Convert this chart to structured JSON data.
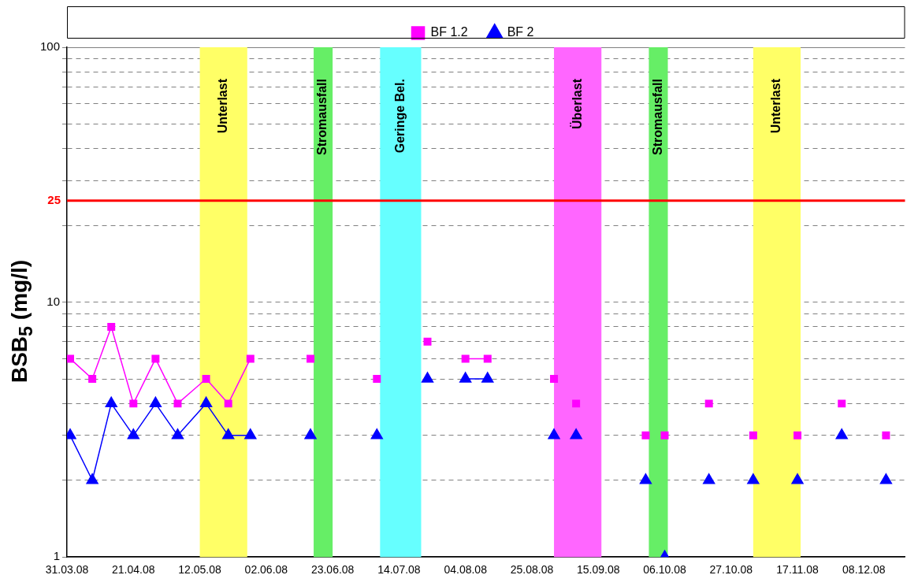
{
  "chart_data": {
    "type": "line",
    "ylabel": "BSB$_{5}$ (mg/l)",
    "x": [
      "2008-04-01",
      "2008-04-08",
      "2008-04-14",
      "2008-04-21",
      "2008-04-28",
      "2008-05-05",
      "2008-05-14",
      "2008-05-21",
      "2008-05-28",
      "2008-06-04",
      "2008-06-16",
      "2008-06-23",
      "2008-07-07",
      "2008-07-14",
      "2008-07-23",
      "2008-07-30",
      "2008-08-04",
      "2008-08-11",
      "2008-08-18",
      "2008-09-01",
      "2008-09-04",
      "2008-09-08",
      "2008-09-15",
      "2008-09-30",
      "2008-10-03",
      "2008-10-06",
      "2008-10-13",
      "2008-10-20",
      "2008-10-27",
      "2008-11-03",
      "2008-11-10",
      "2008-11-17",
      "2008-11-24",
      "2008-12-01",
      "2008-12-08",
      "2008-12-15"
    ],
    "series": [
      {
        "name": "BF 1.2",
        "color": "#ff00ff",
        "marker": "square",
        "values": [
          6,
          5,
          8,
          4,
          6,
          4,
          5,
          4,
          6,
          null,
          6,
          null,
          5,
          null,
          7,
          null,
          6,
          6,
          null,
          5,
          null,
          4,
          null,
          3,
          null,
          3,
          null,
          4,
          null,
          3,
          null,
          3,
          null,
          4,
          null,
          3
        ]
      },
      {
        "name": "BF 2",
        "color": "#0000ff",
        "marker": "triangle",
        "values": [
          3,
          2,
          4,
          3,
          4,
          3,
          4,
          3,
          3,
          null,
          3,
          null,
          3,
          null,
          5,
          null,
          5,
          5,
          null,
          3,
          null,
          3,
          null,
          2,
          null,
          1,
          null,
          2,
          null,
          2,
          null,
          2,
          null,
          3,
          null,
          2
        ]
      }
    ],
    "log": "y",
    "ylim": [
      1,
      100
    ],
    "yticks": [
      1,
      {
        "value": 2,
        "label": null
      },
      {
        "value": 3,
        "label": null
      },
      {
        "value": 4,
        "label": null
      },
      {
        "value": 5,
        "label": null
      },
      {
        "value": 6,
        "label": null
      },
      {
        "value": 7,
        "label": null
      },
      {
        "value": 8,
        "label": null
      },
      {
        "value": 9,
        "label": null
      },
      10,
      {
        "value": 20,
        "label": null
      },
      {
        "value": 30,
        "label": null
      },
      {
        "value": 40,
        "label": null
      },
      {
        "value": 50,
        "label": null
      },
      {
        "value": 60,
        "label": null
      },
      {
        "value": 70,
        "label": null
      },
      {
        "value": 80,
        "label": null
      },
      {
        "value": 90,
        "label": null
      },
      100
    ],
    "xlim": [
      "2008-03-31",
      "2008-12-21"
    ],
    "xticks": [
      {
        "value": "2008-03-31",
        "label": "31.03.08"
      },
      {
        "value": "2008-04-21",
        "label": "21.04.08"
      },
      {
        "value": "2008-05-12",
        "label": "12.05.08"
      },
      {
        "value": "2008-06-02",
        "label": "02.06.08"
      },
      {
        "value": "2008-06-23",
        "label": "23.06.08"
      },
      {
        "value": "2008-07-14",
        "label": "14.07.08"
      },
      {
        "value": "2008-08-04",
        "label": "04.08.08"
      },
      {
        "value": "2008-08-25",
        "label": "25.08.08"
      },
      {
        "value": "2008-09-15",
        "label": "15.09.08"
      },
      {
        "value": "2008-10-06",
        "label": "06.10.08"
      },
      {
        "value": "2008-10-27",
        "label": "27.10.08"
      },
      {
        "value": "2008-11-17",
        "label": "17.11.08"
      },
      {
        "value": "2008-12-08",
        "label": "08.12.08"
      }
    ],
    "grid": "y",
    "legend": "top",
    "ref_lines": [
      {
        "axis": "y",
        "value": 25,
        "label": "25",
        "color": "#ff0000"
      }
    ],
    "bands": [
      {
        "axis": "x",
        "from": "2008-05-12",
        "to": "2008-05-27",
        "label": "Unterlast",
        "color": "#ffff66"
      },
      {
        "axis": "x",
        "from": "2008-06-17",
        "to": "2008-06-23",
        "label": "Stromausfall",
        "color": "#66ee66"
      },
      {
        "axis": "x",
        "from": "2008-07-08",
        "to": "2008-07-21",
        "label": "Geringe Bel.",
        "color": "#66ffff"
      },
      {
        "axis": "x",
        "from": "2008-09-01",
        "to": "2008-09-16",
        "label": "Überlast",
        "color": "#ff66ff"
      },
      {
        "axis": "x",
        "from": "2008-10-01",
        "to": "2008-10-07",
        "label": "Stromausfall",
        "color": "#66ee66"
      },
      {
        "axis": "x",
        "from": "2008-11-03",
        "to": "2008-11-18",
        "label": "Unterlast",
        "color": "#ffff66"
      }
    ]
  }
}
